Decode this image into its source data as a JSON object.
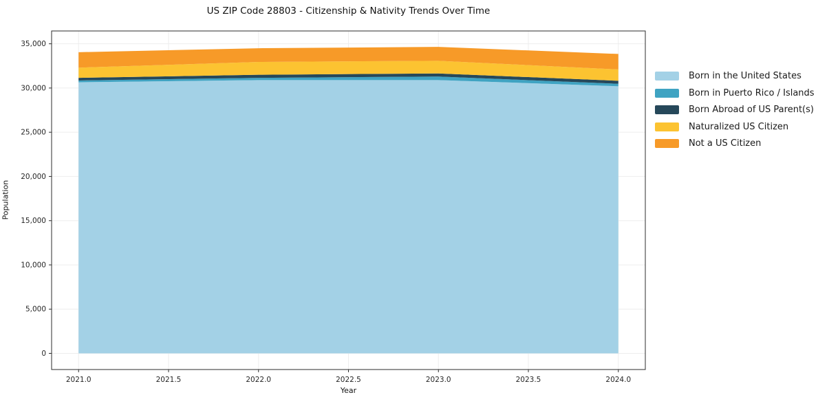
{
  "chart_data": {
    "type": "area",
    "stacked": true,
    "title": "US ZIP Code 28803 - Citizenship & Nativity Trends Over Time",
    "xlabel": "Year",
    "ylabel": "Population",
    "x": [
      2021,
      2022,
      2023,
      2024
    ],
    "series": [
      {
        "name": "Born in the United States",
        "color": "#a3d1e6",
        "values": [
          30650,
          30900,
          30900,
          30200
        ]
      },
      {
        "name": "Born in Puerto Rico / Islands",
        "color": "#3fa3c2",
        "values": [
          200,
          250,
          400,
          280
        ]
      },
      {
        "name": "Born Abroad of US Parent(s)",
        "color": "#26485a",
        "values": [
          300,
          350,
          350,
          340
        ]
      },
      {
        "name": "Naturalized US Citizen",
        "color": "#fcc331",
        "values": [
          1150,
          1450,
          1430,
          1280
        ]
      },
      {
        "name": "Not a US Citizen",
        "color": "#f79a28",
        "values": [
          1750,
          1550,
          1570,
          1750
        ]
      }
    ],
    "xticks": {
      "values": [
        2021.0,
        2021.5,
        2022.0,
        2022.5,
        2023.0,
        2023.5,
        2024.0
      ],
      "labels": [
        "2021.0",
        "2021.5",
        "2022.0",
        "2022.5",
        "2023.0",
        "2023.5",
        "2024.0"
      ]
    },
    "yticks": {
      "values": [
        0,
        5000,
        10000,
        15000,
        20000,
        25000,
        30000,
        35000
      ],
      "labels": [
        "0",
        "5,000",
        "10,000",
        "15,000",
        "20,000",
        "25,000",
        "30,000",
        "35,000"
      ]
    },
    "xlim": [
      2020.85,
      2024.15
    ],
    "ylim": [
      -1828,
      36450
    ],
    "grid": true,
    "grid_color": "#ededed",
    "spine_color": "#2b2b2b",
    "legend_position": "outside-right"
  }
}
